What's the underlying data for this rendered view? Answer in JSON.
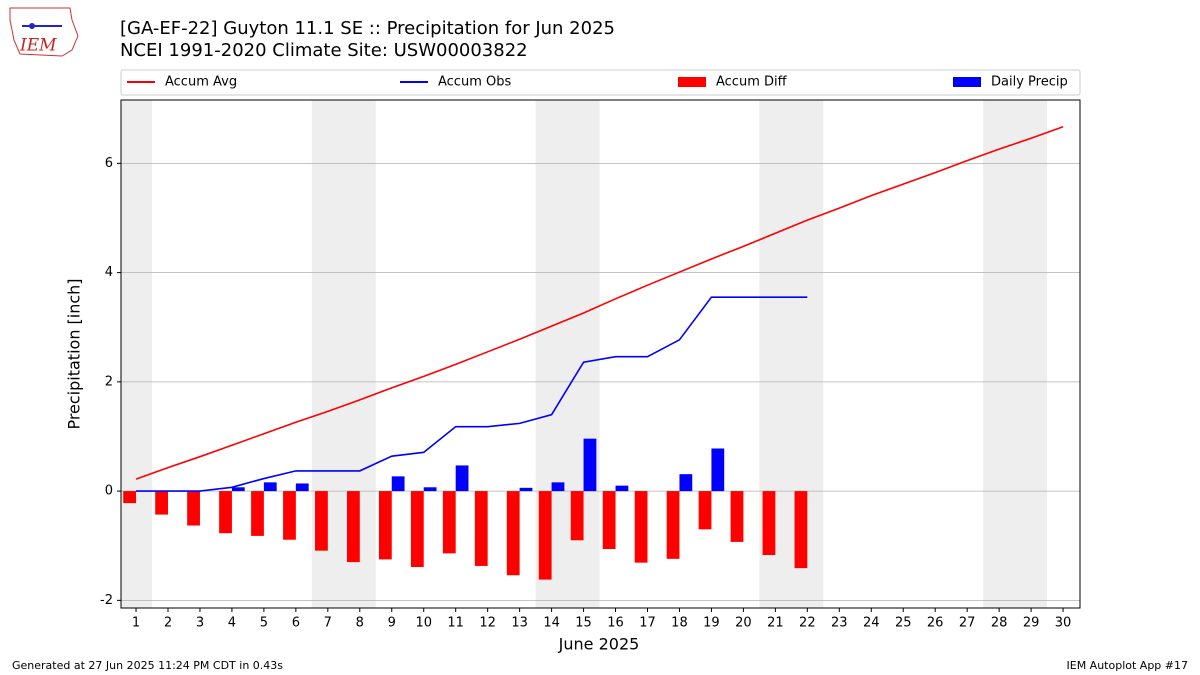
{
  "logo_text": "IEM",
  "footer": {
    "left": "Generated at 27 Jun 2025 11:24 PM CDT in 0.43s",
    "right": "IEM Autoplot App #17"
  },
  "chart_data": {
    "type": "combo",
    "title": "[GA-EF-22] Guyton 11.1 SE :: Precipitation for Jun 2025",
    "subtitle": "NCEI 1991-2020 Climate Site: USW00003822",
    "x_label": "June 2025",
    "y_label": "Precipitation [inch]",
    "x": [
      1,
      2,
      3,
      4,
      5,
      6,
      7,
      8,
      9,
      10,
      11,
      12,
      13,
      14,
      15,
      16,
      17,
      18,
      19,
      20,
      21,
      22,
      23,
      24,
      25,
      26,
      27,
      28,
      29,
      30
    ],
    "xlim": [
      0.53,
      30.53
    ],
    "xticks": [
      1,
      2,
      3,
      4,
      5,
      6,
      7,
      8,
      9,
      10,
      11,
      12,
      13,
      14,
      15,
      16,
      17,
      18,
      19,
      20,
      21,
      22,
      23,
      24,
      25,
      26,
      27,
      28,
      29,
      30
    ],
    "ylim": [
      -2.14,
      7.16
    ],
    "yticks": [
      -2,
      0,
      2,
      4,
      6
    ],
    "grid": true,
    "legend": "top",
    "series": [
      {
        "name": "Accum Avg",
        "type": "line",
        "color": "#ff0000",
        "values": [
          0.22,
          0.43,
          0.63,
          0.84,
          1.05,
          1.26,
          1.46,
          1.67,
          1.89,
          2.1,
          2.32,
          2.55,
          2.78,
          3.02,
          3.26,
          3.52,
          3.77,
          4.01,
          4.25,
          4.48,
          4.72,
          4.96,
          5.18,
          5.41,
          5.62,
          5.83,
          6.05,
          6.26,
          6.46,
          6.67
        ]
      },
      {
        "name": "Accum Obs",
        "type": "line",
        "color": "#0000ff",
        "values": [
          0,
          0,
          0,
          0.07,
          0.23,
          0.37,
          0.37,
          0.37,
          0.64,
          0.71,
          1.18,
          1.18,
          1.24,
          1.4,
          2.36,
          2.46,
          2.46,
          2.77,
          3.55,
          3.55,
          3.55,
          3.55,
          null,
          null,
          null,
          null,
          null,
          null,
          null,
          null
        ]
      },
      {
        "name": "Accum Diff",
        "type": "bar",
        "color": "#ff0000",
        "values": [
          -0.22,
          -0.43,
          -0.63,
          -0.77,
          -0.82,
          -0.89,
          -1.09,
          -1.3,
          -1.25,
          -1.39,
          -1.14,
          -1.37,
          -1.54,
          -1.62,
          -0.9,
          -1.06,
          -1.31,
          -1.24,
          -0.7,
          -0.93,
          -1.17,
          -1.41,
          null,
          null,
          null,
          null,
          null,
          null,
          null,
          null
        ]
      },
      {
        "name": "Daily Precip",
        "type": "bar",
        "color": "#0000ff",
        "values": [
          0,
          0,
          0,
          0.07,
          0.16,
          0.14,
          0,
          0,
          0.27,
          0.07,
          0.47,
          0,
          0.06,
          0.16,
          0.96,
          0.1,
          0,
          0.31,
          0.78,
          0,
          0,
          0,
          null,
          null,
          null,
          null,
          null,
          null,
          null,
          null
        ]
      }
    ]
  }
}
